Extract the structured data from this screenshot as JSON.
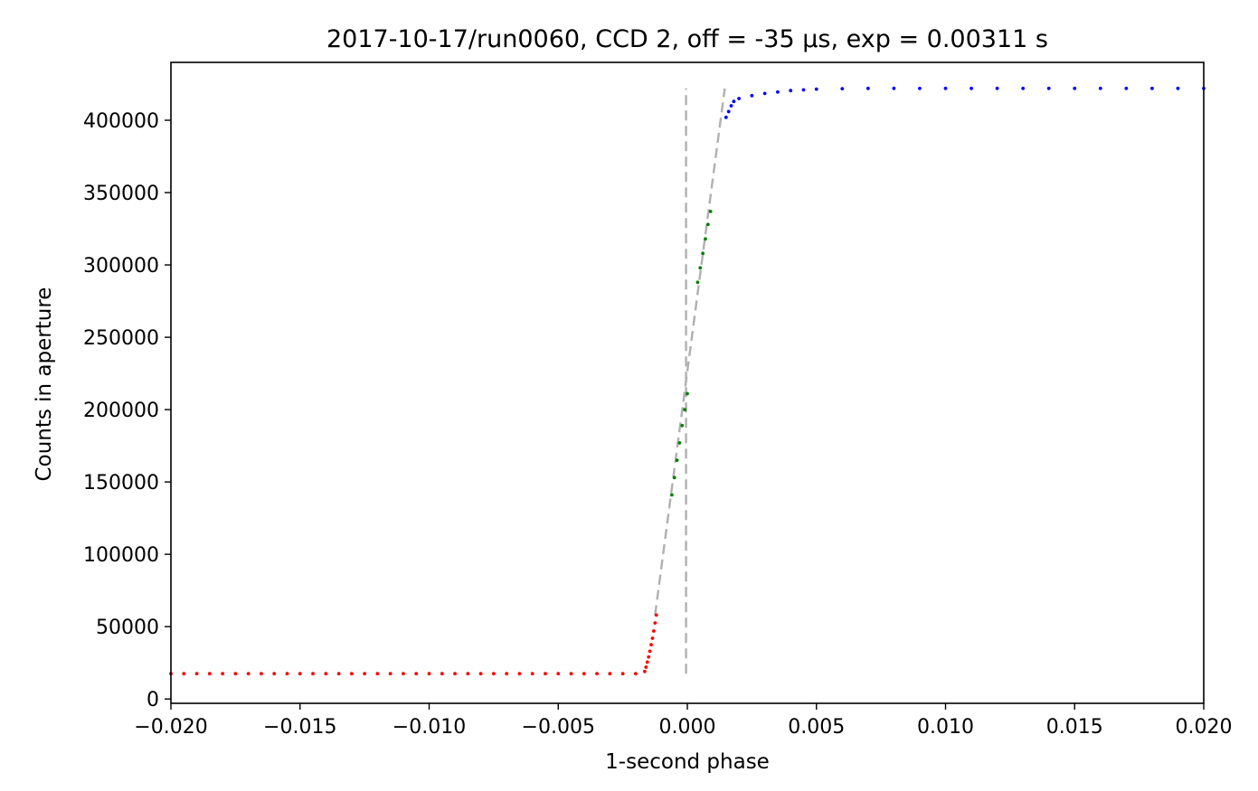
{
  "chart_data": {
    "type": "scatter",
    "title": "2017-10-17/run0060, CCD 2, off = -35 μs, exp = 0.00311 s",
    "xlabel": "1-second phase",
    "ylabel": "Counts in aperture",
    "xlim": [
      -0.02,
      0.02
    ],
    "ylim": [
      -3000,
      440000
    ],
    "x_ticks": [
      -0.02,
      -0.015,
      -0.01,
      -0.005,
      0.0,
      0.005,
      0.01,
      0.015,
      0.02
    ],
    "x_tick_labels": [
      "−0.020",
      "−0.015",
      "−0.010",
      "−0.005",
      "0.000",
      "0.005",
      "0.010",
      "0.015",
      "0.020"
    ],
    "y_ticks": [
      0,
      50000,
      100000,
      150000,
      200000,
      250000,
      300000,
      350000,
      400000
    ],
    "y_tick_labels": [
      "0",
      "50000",
      "100000",
      "150000",
      "200000",
      "250000",
      "300000",
      "350000",
      "400000"
    ],
    "grid": false,
    "series": [
      {
        "color": "#ff0000",
        "marker_size": 2,
        "x": [
          -0.02,
          -0.0195,
          -0.019,
          -0.0185,
          -0.018,
          -0.0175,
          -0.017,
          -0.0165,
          -0.016,
          -0.0155,
          -0.015,
          -0.0145,
          -0.014,
          -0.0135,
          -0.013,
          -0.0125,
          -0.012,
          -0.0115,
          -0.011,
          -0.0105,
          -0.01,
          -0.0095,
          -0.009,
          -0.0085,
          -0.008,
          -0.0075,
          -0.007,
          -0.0065,
          -0.006,
          -0.0055,
          -0.005,
          -0.0045,
          -0.004,
          -0.0035,
          -0.003,
          -0.0025,
          -0.002,
          -0.00165,
          -0.0016,
          -0.00155,
          -0.0015,
          -0.00145,
          -0.0014,
          -0.00135,
          -0.0013,
          -0.00125,
          -0.0012
        ],
        "y": [
          17500,
          17500,
          17500,
          17500,
          17500,
          17500,
          17500,
          17500,
          17500,
          17500,
          17500,
          17500,
          17500,
          17500,
          17500,
          17500,
          17500,
          17500,
          17500,
          17500,
          17500,
          17500,
          17500,
          17500,
          17500,
          17500,
          17500,
          17500,
          17500,
          17500,
          17500,
          17500,
          17500,
          17500,
          17500,
          17500,
          17500,
          19000,
          22000,
          25500,
          29000,
          33000,
          37500,
          42000,
          47000,
          52500,
          58000
        ]
      },
      {
        "color": "#008000",
        "marker_size": 2,
        "x": [
          -0.0006,
          -0.0005,
          -0.0004,
          -0.0003,
          -0.0002,
          -0.0001,
          0.0,
          0.0004,
          0.0005,
          0.0006,
          0.0007,
          0.0008,
          0.0009
        ],
        "y": [
          141000,
          153000,
          165000,
          177000,
          189000,
          200000,
          211000,
          288000,
          298000,
          308000,
          318000,
          328000,
          337000
        ]
      },
      {
        "color": "#0000ff",
        "marker_size": 2,
        "x": [
          0.0015,
          0.0016,
          0.0017,
          0.0018,
          0.002,
          0.0025,
          0.003,
          0.0035,
          0.004,
          0.0045,
          0.005,
          0.006,
          0.007,
          0.008,
          0.009,
          0.01,
          0.011,
          0.012,
          0.013,
          0.014,
          0.015,
          0.016,
          0.017,
          0.018,
          0.019,
          0.02
        ],
        "y": [
          402000,
          406000,
          410000,
          413000,
          415000,
          417000,
          418500,
          419500,
          420500,
          421000,
          421500,
          421800,
          422000,
          422000,
          422000,
          422000,
          422000,
          422000,
          422000,
          422000,
          422000,
          422000,
          422000,
          422000,
          422000,
          422000
        ]
      }
    ],
    "reference_lines": [
      {
        "color": "#b0b0b0",
        "style": "dashed",
        "x": [
          -5e-05,
          -5e-05
        ],
        "y": [
          17500,
          422000
        ]
      },
      {
        "color": "#b0b0b0",
        "style": "dashed",
        "x": [
          -0.00125,
          0.00145
        ],
        "y": [
          58000,
          422000
        ]
      }
    ]
  }
}
